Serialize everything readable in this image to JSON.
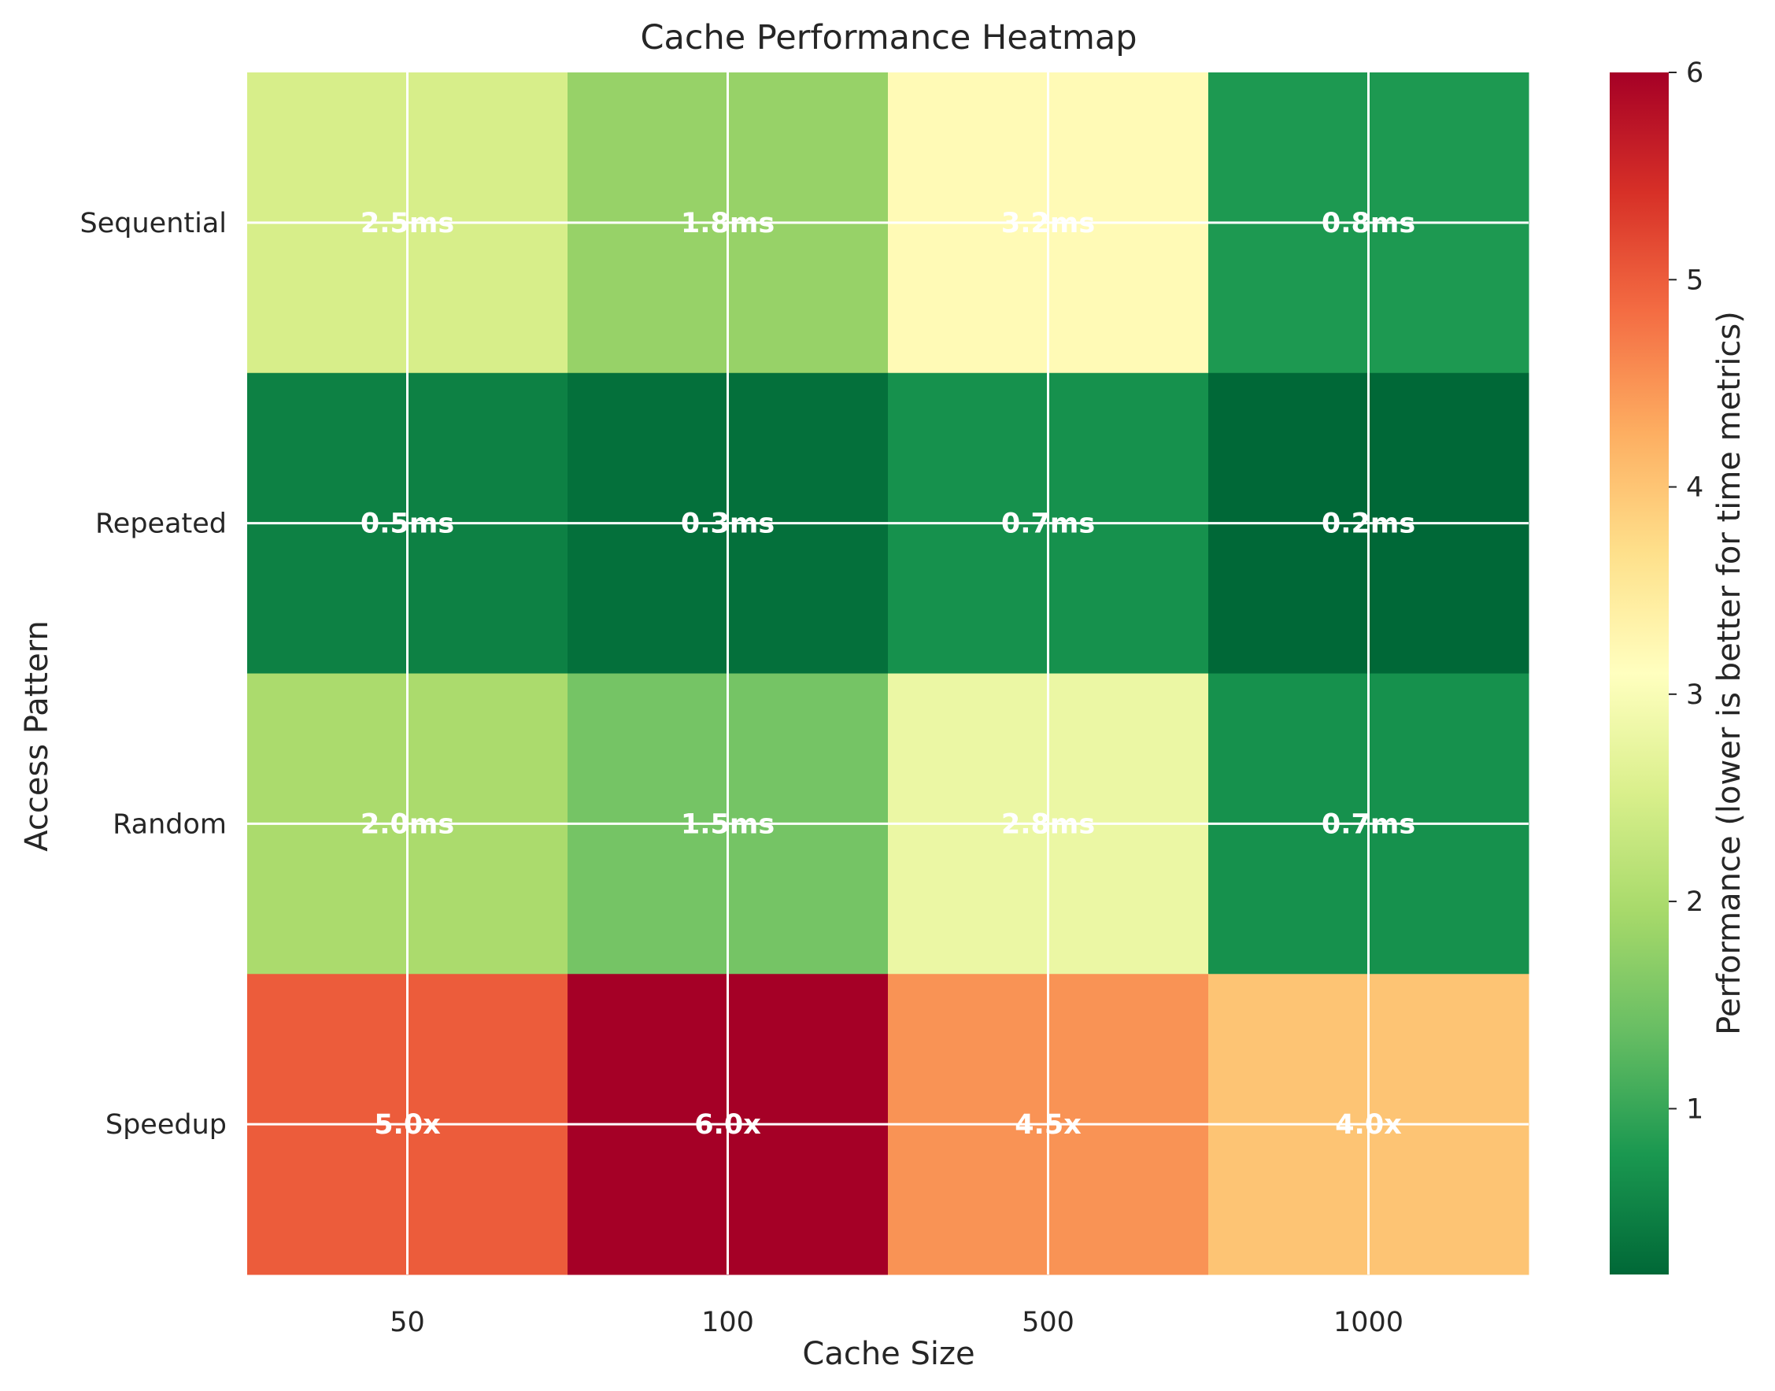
{
  "chart_data": {
    "type": "heatmap",
    "title": "Cache Performance Heatmap",
    "xlabel": "Cache Size",
    "ylabel": "Access Pattern",
    "x_categories": [
      "50",
      "100",
      "500",
      "1000"
    ],
    "y_categories": [
      "Sequential",
      "Repeated",
      "Random",
      "Speedup"
    ],
    "values": [
      [
        2.5,
        1.8,
        3.2,
        0.8
      ],
      [
        0.5,
        0.3,
        0.7,
        0.2
      ],
      [
        2.0,
        1.5,
        2.8,
        0.7
      ],
      [
        5.0,
        6.0,
        4.5,
        4.0
      ]
    ],
    "cell_labels": [
      [
        "2.5ms",
        "1.8ms",
        "3.2ms",
        "0.8ms"
      ],
      [
        "0.5ms",
        "0.3ms",
        "0.7ms",
        "0.2ms"
      ],
      [
        "2.0ms",
        "1.5ms",
        "2.8ms",
        "0.7ms"
      ],
      [
        "5.0x",
        "6.0x",
        "4.5x",
        "4.0x"
      ]
    ],
    "colormap": "RdYlGn_r",
    "value_range": [
      0.2,
      6.0
    ],
    "colorbar": {
      "label": "Performance (lower is better for time metrics)",
      "ticks": [
        1,
        2,
        3,
        4,
        5,
        6
      ],
      "tick_labels": [
        "1",
        "2",
        "3",
        "4",
        "5",
        "6"
      ]
    },
    "grid": true
  }
}
